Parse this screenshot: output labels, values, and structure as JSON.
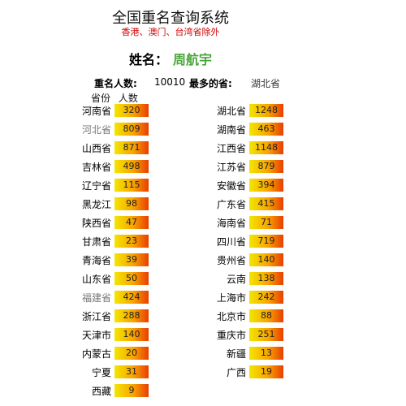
{
  "title": "全国重名查询系统",
  "subtitle": "香港、澳门、台湾省除外",
  "name_label": "姓名：",
  "name_value": "周航宇",
  "summary": {
    "total_label": "重名人数:",
    "total_value": "10010",
    "top_label": "最多的省:",
    "top_province": "湖北省"
  },
  "columns": {
    "province": "省份",
    "count": "人数"
  },
  "left": [
    {
      "name": "河南省",
      "count": "320"
    },
    {
      "name": "河北省",
      "count": "809",
      "muted": true
    },
    {
      "name": "山西省",
      "count": "871"
    },
    {
      "name": "吉林省",
      "count": "498"
    },
    {
      "name": "辽宁省",
      "count": "115"
    },
    {
      "name": "黑龙江",
      "count": "98"
    },
    {
      "name": "陕西省",
      "count": "47"
    },
    {
      "name": "甘肃省",
      "count": "23"
    },
    {
      "name": "青海省",
      "count": "39"
    },
    {
      "name": "山东省",
      "count": "50"
    },
    {
      "name": "福建省",
      "count": "424",
      "muted": true
    },
    {
      "name": "浙江省",
      "count": "288"
    },
    {
      "name": "天津市",
      "count": "140"
    },
    {
      "name": "内蒙古",
      "count": "20"
    },
    {
      "name": "宁夏",
      "count": "31"
    },
    {
      "name": "西藏",
      "count": "9"
    }
  ],
  "right": [
    {
      "name": "湖北省",
      "count": "1248"
    },
    {
      "name": "湖南省",
      "count": "463"
    },
    {
      "name": "江西省",
      "count": "1148"
    },
    {
      "name": "江苏省",
      "count": "879"
    },
    {
      "name": "安徽省",
      "count": "394"
    },
    {
      "name": "广东省",
      "count": "415"
    },
    {
      "name": "海南省",
      "count": "71"
    },
    {
      "name": "四川省",
      "count": "719"
    },
    {
      "name": "贵州省",
      "count": "140"
    },
    {
      "name": "云南",
      "count": "138"
    },
    {
      "name": "上海市",
      "count": "242"
    },
    {
      "name": "北京市",
      "count": "88"
    },
    {
      "name": "重庆市",
      "count": "251"
    },
    {
      "name": "新疆",
      "count": "13"
    },
    {
      "name": "广西",
      "count": "19"
    }
  ]
}
